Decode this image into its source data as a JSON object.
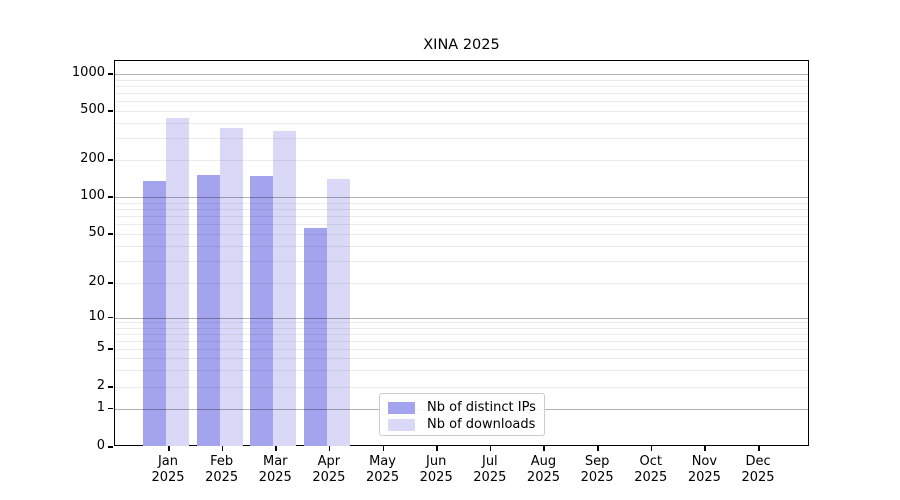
{
  "chart_data": {
    "type": "bar",
    "title": "XINA 2025",
    "year": "2025",
    "months": [
      "Jan",
      "Feb",
      "Mar",
      "Apr",
      "May",
      "Jun",
      "Jul",
      "Aug",
      "Sep",
      "Oct",
      "Nov",
      "Dec"
    ],
    "categories": [
      "Jan 2025",
      "Feb 2025",
      "Mar 2025",
      "Apr 2025",
      "May 2025",
      "Jun 2025",
      "Jul 2025",
      "Aug 2025",
      "Sep 2025",
      "Oct 2025",
      "Nov 2025",
      "Dec 2025"
    ],
    "series": [
      {
        "name": "Nb of distinct IPs",
        "slug": "ips",
        "color": "#a3a3ee",
        "values": [
          135,
          150,
          148,
          56,
          null,
          null,
          null,
          null,
          null,
          null,
          null,
          null
        ]
      },
      {
        "name": "Nb of downloads",
        "slug": "downloads",
        "color": "#d9d9f7",
        "values": [
          440,
          365,
          345,
          140,
          null,
          null,
          null,
          null,
          null,
          null,
          null,
          null
        ]
      }
    ],
    "yscale": "symlog",
    "ylim": [
      0,
      1000
    ],
    "ytick_labels": [
      "0",
      "1",
      "2",
      "5",
      "10",
      "20",
      "50",
      "100",
      "200",
      "500",
      "1000"
    ],
    "grid": true,
    "legend_position": "lower-center",
    "colors": {
      "frame": "#000000",
      "grid_decade": "#b3b3b3",
      "grid_minor": "#ebebeb",
      "legend_border": "#cccccc"
    }
  }
}
